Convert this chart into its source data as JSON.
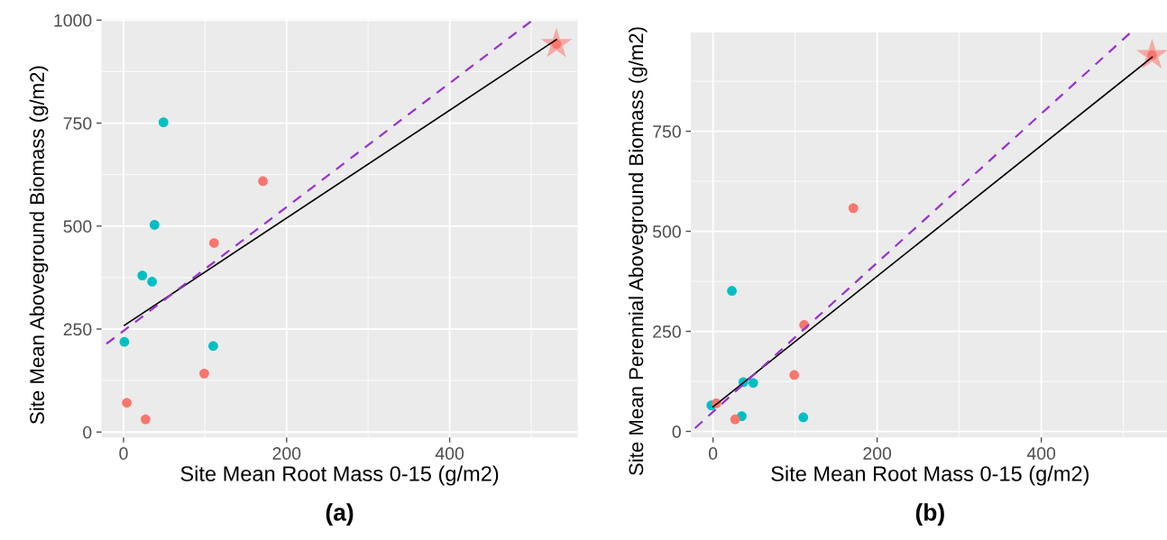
{
  "chart_data": [
    {
      "type": "scatter",
      "title": "(a)",
      "xlabel": "Site Mean Root Mass 0-15 (g/m2)",
      "ylabel": "Site Mean Aboveground Biomass (g/m2)",
      "xlim": [
        -27,
        557
      ],
      "ylim": [
        -13,
        1003
      ],
      "xticks": [
        0,
        200,
        400
      ],
      "yticks": [
        0,
        250,
        500,
        750,
        1000
      ],
      "grid": true,
      "marker": "circle",
      "series": [
        {
          "color": "#00bfc4",
          "x": [
            1,
            23,
            35,
            38,
            49,
            110
          ],
          "values": [
            219,
            380,
            365,
            503,
            752,
            209
          ]
        },
        {
          "color": "#f4aaa4",
          "marker": "star",
          "x": [
            531
          ],
          "values": [
            942
          ]
        },
        {
          "color": "#f8766d",
          "x": [
            4,
            27,
            99,
            111,
            171,
            531
          ],
          "values": [
            71,
            31,
            142,
            459,
            609,
            942
          ]
        },
        {
          "type": "line",
          "color": "#000000",
          "marker": "none",
          "x": [
            1,
            531
          ],
          "values": [
            259,
            953
          ]
        },
        {
          "type": "line",
          "color": "#9932cc",
          "marker": "none",
          "line_style": "dashed",
          "x": [
            -21,
            503
          ],
          "values": [
            214,
            1002
          ]
        }
      ]
    },
    {
      "type": "scatter",
      "title": "(b)",
      "xlabel": "Site Mean Root Mass 0-15 (g/m2)",
      "ylabel": "Site Mean Perennial Aboveground Biomass (g/m2)",
      "xlim": [
        -27,
        556
      ],
      "ylim": [
        -15,
        997
      ],
      "xticks": [
        0,
        200,
        400
      ],
      "yticks": [
        0,
        250,
        500,
        750
      ],
      "grid": true,
      "marker": "circle",
      "series": [
        {
          "color": "#00bfc4",
          "x": [
            -2,
            23,
            37,
            49,
            35,
            110
          ],
          "values": [
            65,
            351,
            123,
            121,
            38,
            35
          ]
        },
        {
          "color": "#f4aaa4",
          "marker": "star",
          "x": [
            535
          ],
          "values": [
            940
          ]
        },
        {
          "color": "#f8766d",
          "x": [
            4,
            27,
            99,
            111,
            171,
            535
          ],
          "values": [
            70,
            30,
            141,
            266,
            558,
            940
          ]
        },
        {
          "type": "line",
          "color": "#000000",
          "marker": "none",
          "x": [
            0,
            535
          ],
          "values": [
            61,
            935
          ]
        },
        {
          "type": "line",
          "color": "#9932cc",
          "marker": "none",
          "line_style": "dashed",
          "x": [
            -22,
            509
          ],
          "values": [
            8,
            997
          ]
        }
      ]
    }
  ]
}
